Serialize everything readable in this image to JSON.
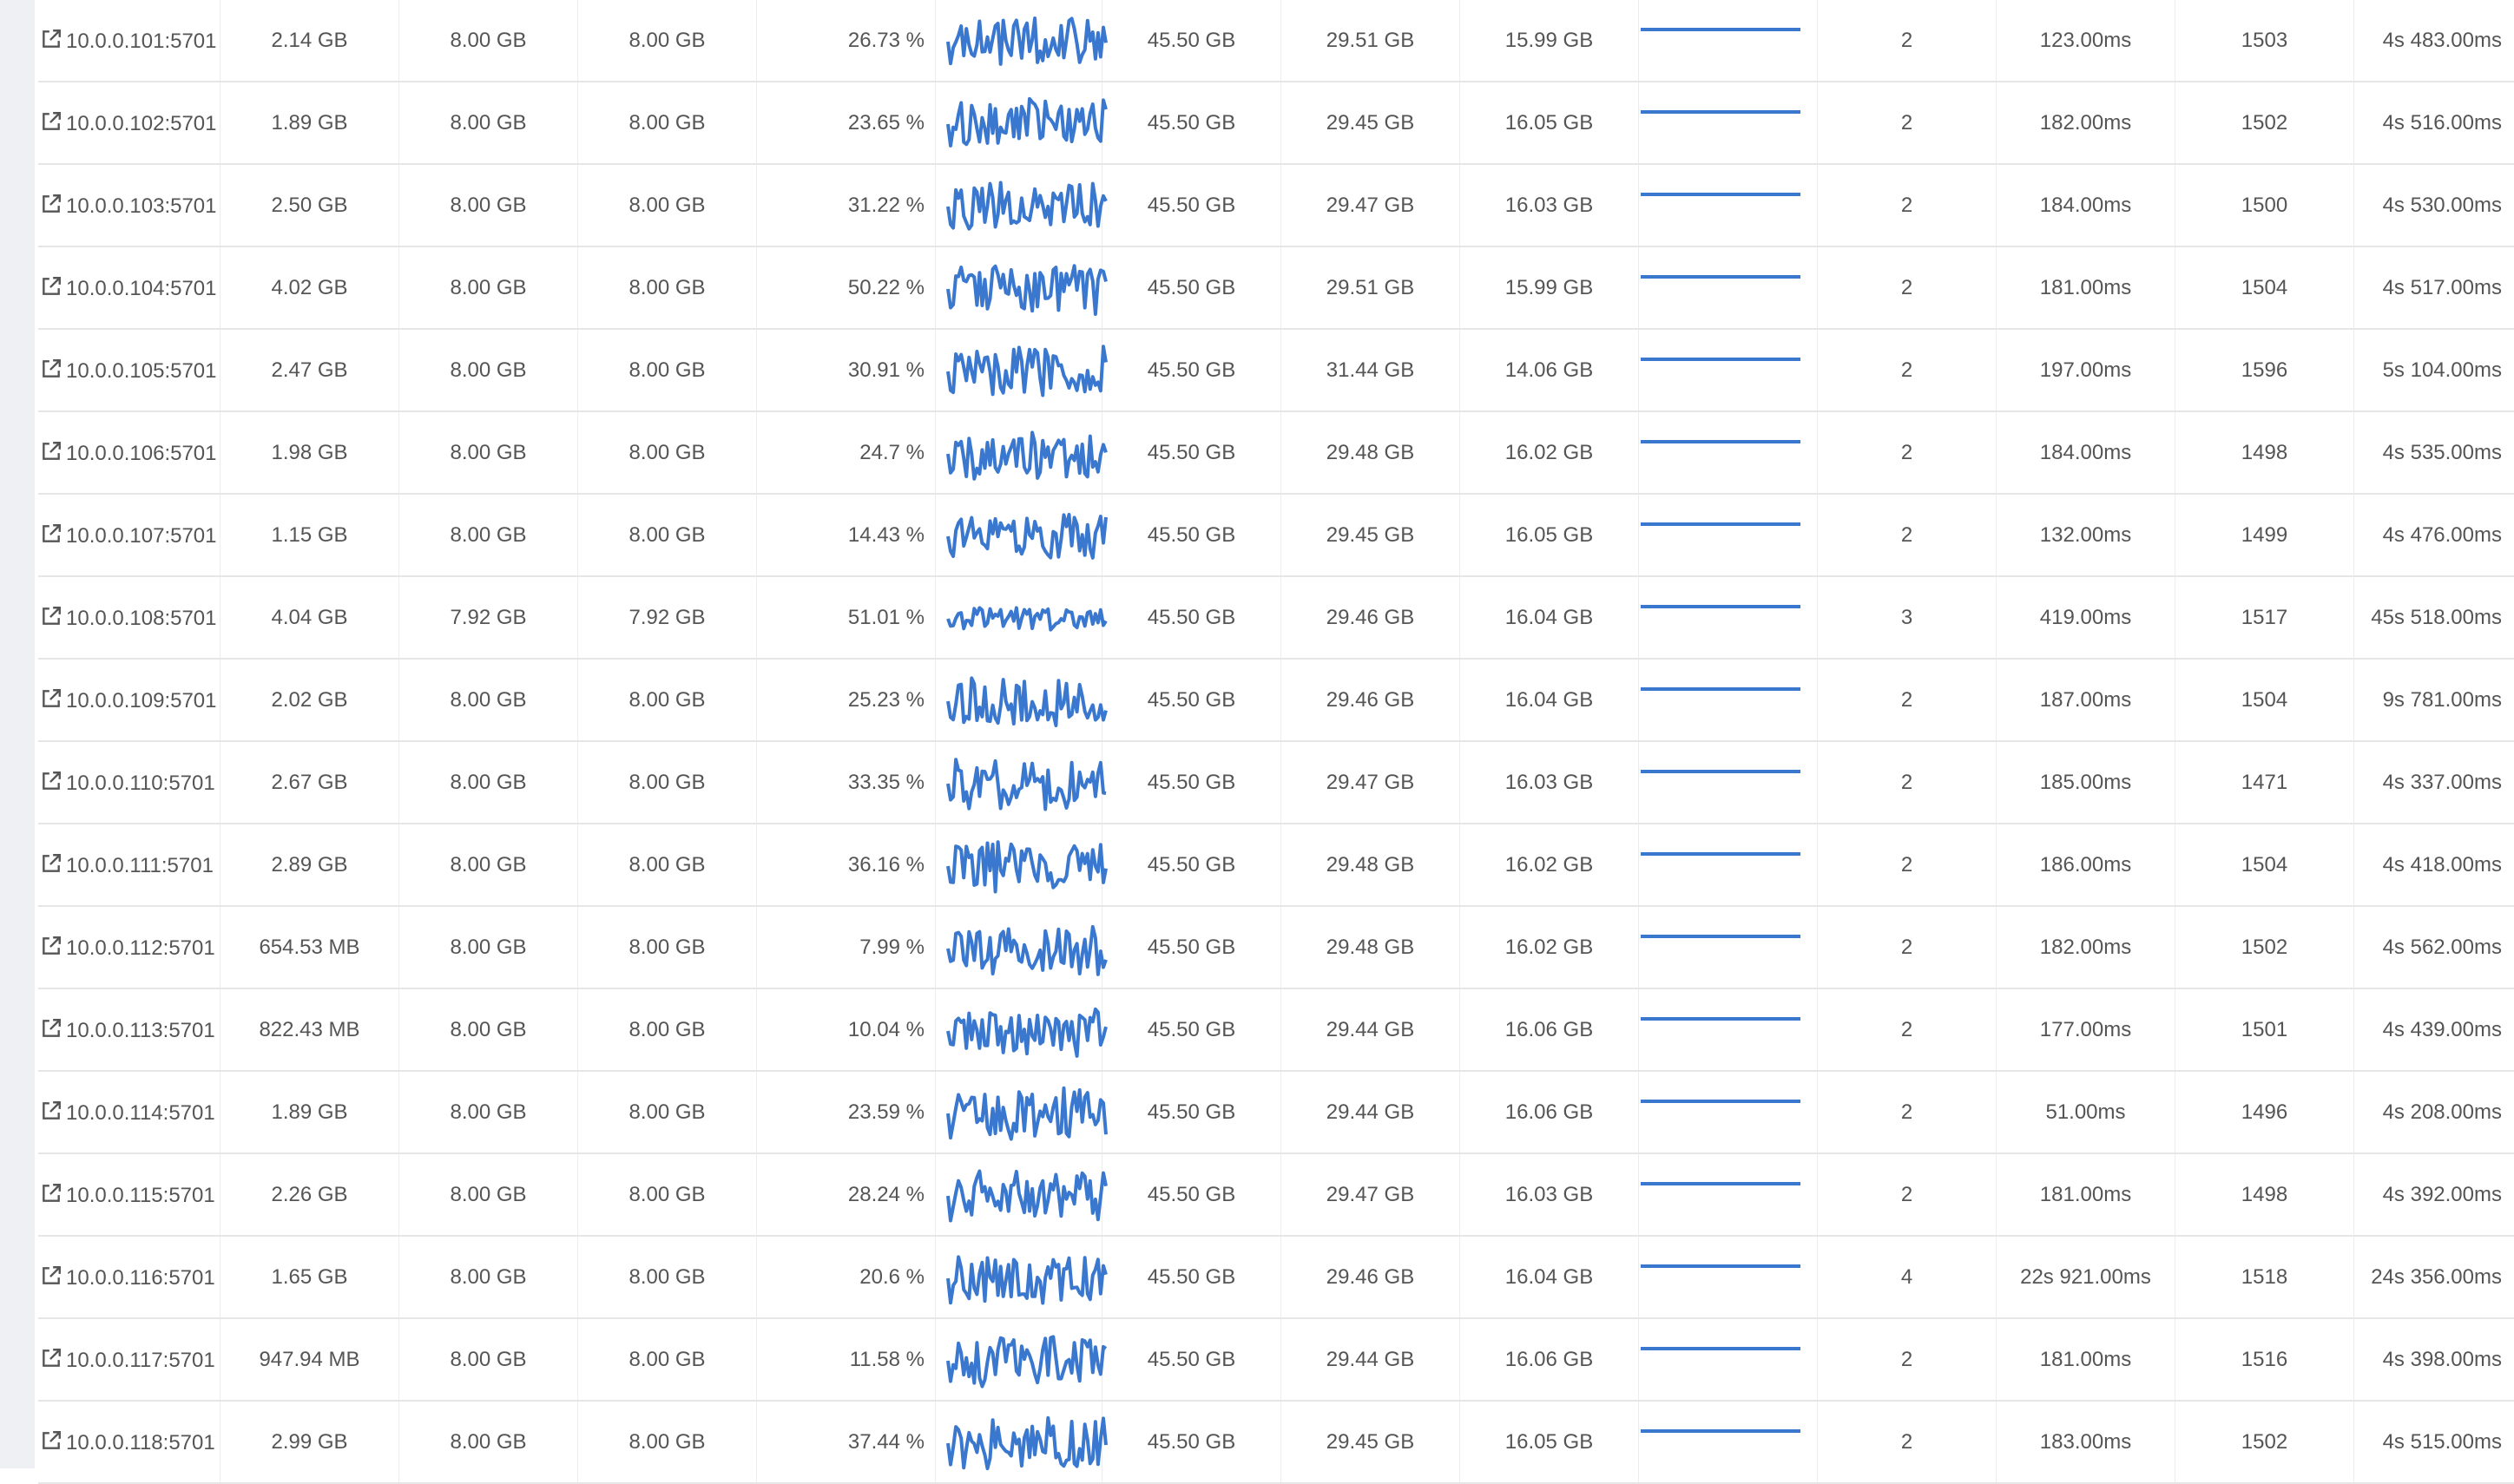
{
  "colors": {
    "accent": "#3a78d0",
    "text": "#555555",
    "divider": "#e6e6e6",
    "gutter": "#eef0f3"
  },
  "icons": {
    "row_link": "external-link-icon"
  },
  "rows": [
    {
      "address": "10.0.0.101:5701",
      "c1": "2.14 GB",
      "c2": "8.00 GB",
      "c3": "8.00 GB",
      "pct": "26.73 %",
      "c6": "45.50 GB",
      "c7": "29.51 GB",
      "c8": "15.99 GB",
      "c10": "2",
      "c11": "123.00ms",
      "c12": "1503",
      "c13": "4s 483.00ms"
    },
    {
      "address": "10.0.0.102:5701",
      "c1": "1.89 GB",
      "c2": "8.00 GB",
      "c3": "8.00 GB",
      "pct": "23.65 %",
      "c6": "45.50 GB",
      "c7": "29.45 GB",
      "c8": "16.05 GB",
      "c10": "2",
      "c11": "182.00ms",
      "c12": "1502",
      "c13": "4s 516.00ms"
    },
    {
      "address": "10.0.0.103:5701",
      "c1": "2.50 GB",
      "c2": "8.00 GB",
      "c3": "8.00 GB",
      "pct": "31.22 %",
      "c6": "45.50 GB",
      "c7": "29.47 GB",
      "c8": "16.03 GB",
      "c10": "2",
      "c11": "184.00ms",
      "c12": "1500",
      "c13": "4s 530.00ms"
    },
    {
      "address": "10.0.0.104:5701",
      "c1": "4.02 GB",
      "c2": "8.00 GB",
      "c3": "8.00 GB",
      "pct": "50.22 %",
      "c6": "45.50 GB",
      "c7": "29.51 GB",
      "c8": "15.99 GB",
      "c10": "2",
      "c11": "181.00ms",
      "c12": "1504",
      "c13": "4s 517.00ms"
    },
    {
      "address": "10.0.0.105:5701",
      "c1": "2.47 GB",
      "c2": "8.00 GB",
      "c3": "8.00 GB",
      "pct": "30.91 %",
      "c6": "45.50 GB",
      "c7": "31.44 GB",
      "c8": "14.06 GB",
      "c10": "2",
      "c11": "197.00ms",
      "c12": "1596",
      "c13": "5s 104.00ms"
    },
    {
      "address": "10.0.0.106:5701",
      "c1": "1.98 GB",
      "c2": "8.00 GB",
      "c3": "8.00 GB",
      "pct": "24.7 %",
      "c6": "45.50 GB",
      "c7": "29.48 GB",
      "c8": "16.02 GB",
      "c10": "2",
      "c11": "184.00ms",
      "c12": "1498",
      "c13": "4s 535.00ms"
    },
    {
      "address": "10.0.0.107:5701",
      "c1": "1.15 GB",
      "c2": "8.00 GB",
      "c3": "8.00 GB",
      "pct": "14.43 %",
      "c6": "45.50 GB",
      "c7": "29.45 GB",
      "c8": "16.05 GB",
      "c10": "2",
      "c11": "132.00ms",
      "c12": "1499",
      "c13": "4s 476.00ms"
    },
    {
      "address": "10.0.0.108:5701",
      "c1": "4.04 GB",
      "c2": "7.92 GB",
      "c3": "7.92 GB",
      "pct": "51.01 %",
      "c6": "45.50 GB",
      "c7": "29.46 GB",
      "c8": "16.04 GB",
      "c10": "3",
      "c11": "419.00ms",
      "c12": "1517",
      "c13": "45s 518.00ms"
    },
    {
      "address": "10.0.0.109:5701",
      "c1": "2.02 GB",
      "c2": "8.00 GB",
      "c3": "8.00 GB",
      "pct": "25.23 %",
      "c6": "45.50 GB",
      "c7": "29.46 GB",
      "c8": "16.04 GB",
      "c10": "2",
      "c11": "187.00ms",
      "c12": "1504",
      "c13": "9s 781.00ms"
    },
    {
      "address": "10.0.0.110:5701",
      "c1": "2.67 GB",
      "c2": "8.00 GB",
      "c3": "8.00 GB",
      "pct": "33.35 %",
      "c6": "45.50 GB",
      "c7": "29.47 GB",
      "c8": "16.03 GB",
      "c10": "2",
      "c11": "185.00ms",
      "c12": "1471",
      "c13": "4s 337.00ms"
    },
    {
      "address": "10.0.0.111:5701",
      "c1": "2.89 GB",
      "c2": "8.00 GB",
      "c3": "8.00 GB",
      "pct": "36.16 %",
      "c6": "45.50 GB",
      "c7": "29.48 GB",
      "c8": "16.02 GB",
      "c10": "2",
      "c11": "186.00ms",
      "c12": "1504",
      "c13": "4s 418.00ms"
    },
    {
      "address": "10.0.0.112:5701",
      "c1": "654.53 MB",
      "c2": "8.00 GB",
      "c3": "8.00 GB",
      "pct": "7.99 %",
      "c6": "45.50 GB",
      "c7": "29.48 GB",
      "c8": "16.02 GB",
      "c10": "2",
      "c11": "182.00ms",
      "c12": "1502",
      "c13": "4s 562.00ms"
    },
    {
      "address": "10.0.0.113:5701",
      "c1": "822.43 MB",
      "c2": "8.00 GB",
      "c3": "8.00 GB",
      "pct": "10.04 %",
      "c6": "45.50 GB",
      "c7": "29.44 GB",
      "c8": "16.06 GB",
      "c10": "2",
      "c11": "177.00ms",
      "c12": "1501",
      "c13": "4s 439.00ms"
    },
    {
      "address": "10.0.0.114:5701",
      "c1": "1.89 GB",
      "c2": "8.00 GB",
      "c3": "8.00 GB",
      "pct": "23.59 %",
      "c6": "45.50 GB",
      "c7": "29.44 GB",
      "c8": "16.06 GB",
      "c10": "2",
      "c11": "51.00ms",
      "c12": "1496",
      "c13": "4s 208.00ms"
    },
    {
      "address": "10.0.0.115:5701",
      "c1": "2.26 GB",
      "c2": "8.00 GB",
      "c3": "8.00 GB",
      "pct": "28.24 %",
      "c6": "45.50 GB",
      "c7": "29.47 GB",
      "c8": "16.03 GB",
      "c10": "2",
      "c11": "181.00ms",
      "c12": "1498",
      "c13": "4s 392.00ms"
    },
    {
      "address": "10.0.0.116:5701",
      "c1": "1.65 GB",
      "c2": "8.00 GB",
      "c3": "8.00 GB",
      "pct": "20.6 %",
      "c6": "45.50 GB",
      "c7": "29.46 GB",
      "c8": "16.04 GB",
      "c10": "4",
      "c11": "22s 921.00ms",
      "c12": "1518",
      "c13": "24s 356.00ms"
    },
    {
      "address": "10.0.0.117:5701",
      "c1": "947.94 MB",
      "c2": "8.00 GB",
      "c3": "8.00 GB",
      "pct": "11.58 %",
      "c6": "45.50 GB",
      "c7": "29.44 GB",
      "c8": "16.06 GB",
      "c10": "2",
      "c11": "181.00ms",
      "c12": "1516",
      "c13": "4s 398.00ms"
    },
    {
      "address": "10.0.0.118:5701",
      "c1": "2.99 GB",
      "c2": "8.00 GB",
      "c3": "8.00 GB",
      "pct": "37.44 %",
      "c6": "45.50 GB",
      "c7": "29.45 GB",
      "c8": "16.05 GB",
      "c10": "2",
      "c11": "183.00ms",
      "c12": "1502",
      "c13": "4s 515.00ms"
    }
  ]
}
